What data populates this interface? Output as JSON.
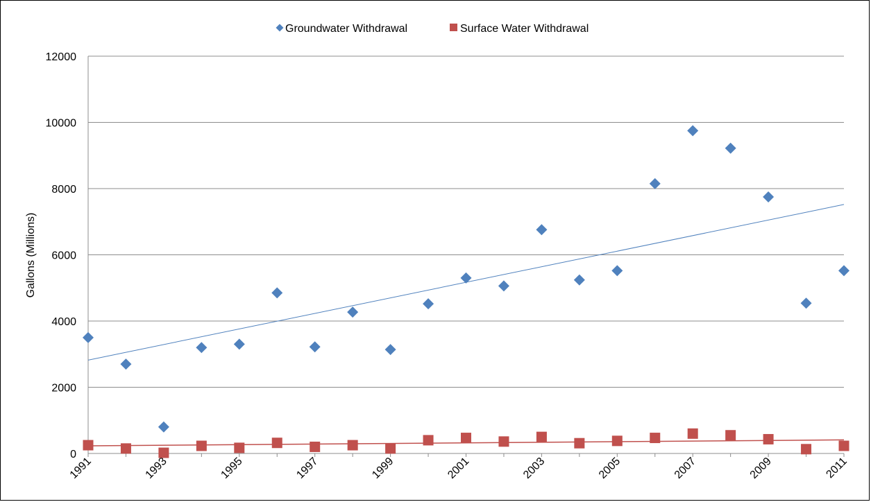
{
  "chart_data": {
    "type": "scatter",
    "title": "",
    "xlabel": "",
    "ylabel": "Gallons (Millions)",
    "xlim": [
      1991,
      2011
    ],
    "ylim": [
      0,
      12000
    ],
    "y_ticks": [
      0,
      2000,
      4000,
      6000,
      8000,
      10000,
      12000
    ],
    "x_tick_labels": [
      "1991",
      "1993",
      "1995",
      "1997",
      "1999",
      "2001",
      "2003",
      "2005",
      "2007",
      "2009",
      "2011"
    ],
    "grid": "horizontal",
    "legend_position": "top",
    "x": [
      1991,
      1992,
      1993,
      1994,
      1995,
      1996,
      1997,
      1998,
      1999,
      2000,
      2001,
      2002,
      2003,
      2004,
      2005,
      2006,
      2007,
      2008,
      2009,
      2010,
      2011
    ],
    "series": [
      {
        "name": "Groundwater Withdrawal",
        "marker": "diamond",
        "color": "#4f81bd",
        "values": [
          3500,
          2700,
          800,
          3200,
          3300,
          4850,
          3220,
          4270,
          3140,
          4520,
          5300,
          5060,
          6760,
          5240,
          5520,
          8150,
          9750,
          9220,
          7750,
          4540,
          5520
        ],
        "trendline": {
          "type": "linear",
          "start": 2820,
          "end": 7520,
          "color": "#4f81bd"
        }
      },
      {
        "name": "Surface Water Withdrawal",
        "marker": "square",
        "color": "#c0504d",
        "values": [
          250,
          150,
          20,
          230,
          170,
          320,
          200,
          250,
          150,
          400,
          470,
          360,
          500,
          310,
          380,
          470,
          600,
          550,
          430,
          130,
          230
        ],
        "trendline": {
          "type": "linear",
          "start": 230,
          "end": 410,
          "color": "#c0504d"
        }
      }
    ]
  }
}
